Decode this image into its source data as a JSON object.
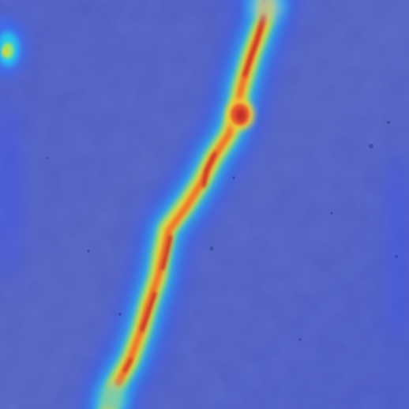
{
  "image": {
    "kind": "heatmap-overlay",
    "subject": "surface crack",
    "colormap": "jet",
    "colors": {
      "background": "#4f5dbf",
      "low": "#3f4fd8",
      "mid_low": "#27b9e8",
      "mid": "#8fe26a",
      "mid_high": "#f3d23a",
      "high": "#e2572d",
      "peak": "#b8262a"
    }
  }
}
